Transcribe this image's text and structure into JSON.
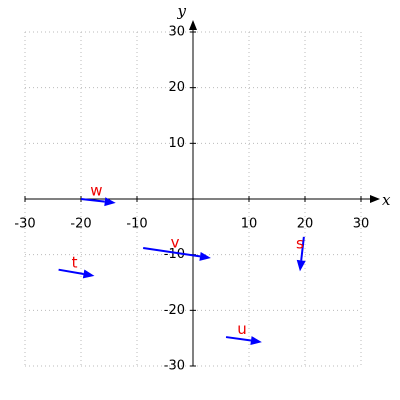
{
  "chart_data": {
    "type": "vector",
    "x_label": "x",
    "y_label": "y",
    "xlim": [
      -30,
      30
    ],
    "ylim": [
      -30,
      30
    ],
    "xticks": [
      -30,
      -20,
      -10,
      10,
      20,
      30
    ],
    "yticks": [
      -30,
      -20,
      -10,
      10,
      20,
      30
    ],
    "grid": true,
    "arrow_color": "#0000ff",
    "label_color": "#ee0000",
    "vectors": [
      {
        "name": "w",
        "x": -20,
        "y": 0,
        "dx": 6.2,
        "dy": -0.7
      },
      {
        "name": "t",
        "x": -24,
        "y": -12.7,
        "dx": 6.4,
        "dy": -1.1
      },
      {
        "name": "v",
        "x": -8.9,
        "y": -8.8,
        "dx": 12.1,
        "dy": -1.8
      },
      {
        "name": "s",
        "x": 19.8,
        "y": -6.8,
        "dx": -0.7,
        "dy": -6.2
      },
      {
        "name": "u",
        "x": 5.9,
        "y": -24.8,
        "dx": 6.4,
        "dy": -0.9
      }
    ]
  }
}
